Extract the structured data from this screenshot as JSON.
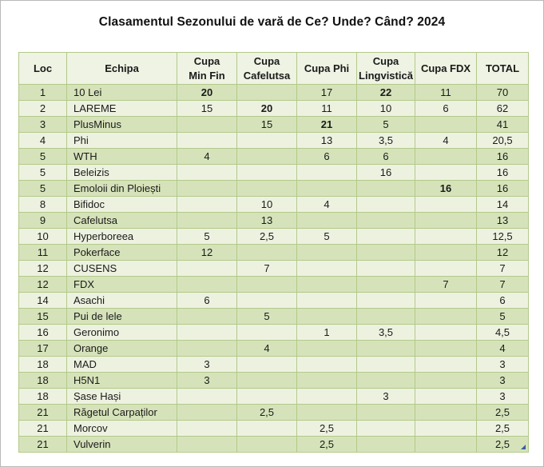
{
  "title": "Clasamentul Sezonului de vară de Ce? Unde? Când? 2024",
  "colors": {
    "band_dark": "#d6e3ba",
    "band_light": "#edf2e0",
    "header_bg": "#eef3e3",
    "table_border": "#b3c98a",
    "corner_marker_blue": "#3b5fa0",
    "text": "#1a1a1a"
  },
  "table": {
    "columns": [
      "Loc",
      "Echipa",
      "Cupa\nMin Fin",
      "Cupa\nCafelutsa",
      "Cupa Phi",
      "Cupa\nLingvistică",
      "Cupa FDX",
      "TOTAL"
    ],
    "rows": [
      {
        "cells": [
          "1",
          "10 Lei",
          "20",
          "",
          "17",
          "22",
          "11",
          "70"
        ],
        "bold": [
          2,
          5
        ]
      },
      {
        "cells": [
          "2",
          "LAREME",
          "15",
          "20",
          "11",
          "10",
          "6",
          "62"
        ],
        "bold": [
          3
        ]
      },
      {
        "cells": [
          "3",
          "PlusMinus",
          "",
          "15",
          "21",
          "5",
          "",
          "41"
        ],
        "bold": [
          4
        ]
      },
      {
        "cells": [
          "4",
          "Phi",
          "",
          "",
          "13",
          "3,5",
          "4",
          "20,5"
        ],
        "bold": []
      },
      {
        "cells": [
          "5",
          "WTH",
          "4",
          "",
          "6",
          "6",
          "",
          "16"
        ],
        "bold": []
      },
      {
        "cells": [
          "5",
          "Beleizis",
          "",
          "",
          "",
          "16",
          "",
          "16"
        ],
        "bold": []
      },
      {
        "cells": [
          "5",
          "Emoloii din Ploiești",
          "",
          "",
          "",
          "",
          "16",
          "16"
        ],
        "bold": [
          6
        ]
      },
      {
        "cells": [
          "8",
          "Bifidoc",
          "",
          "10",
          "4",
          "",
          "",
          "14"
        ],
        "bold": []
      },
      {
        "cells": [
          "9",
          "Cafelutsa",
          "",
          "13",
          "",
          "",
          "",
          "13"
        ],
        "bold": []
      },
      {
        "cells": [
          "10",
          "Hyperboreea",
          "5",
          "2,5",
          "5",
          "",
          "",
          "12,5"
        ],
        "bold": []
      },
      {
        "cells": [
          "11",
          "Pokerface",
          "12",
          "",
          "",
          "",
          "",
          "12"
        ],
        "bold": []
      },
      {
        "cells": [
          "12",
          "CUSENS",
          "",
          "7",
          "",
          "",
          "",
          "7"
        ],
        "bold": []
      },
      {
        "cells": [
          "12",
          "FDX",
          "",
          "",
          "",
          "",
          "7",
          "7"
        ],
        "bold": []
      },
      {
        "cells": [
          "14",
          "Asachi",
          "6",
          "",
          "",
          "",
          "",
          "6"
        ],
        "bold": []
      },
      {
        "cells": [
          "15",
          "Pui de lele",
          "",
          "5",
          "",
          "",
          "",
          "5"
        ],
        "bold": []
      },
      {
        "cells": [
          "16",
          "Geronimo",
          "",
          "",
          "1",
          "3,5",
          "",
          "4,5"
        ],
        "bold": []
      },
      {
        "cells": [
          "17",
          "Orange",
          "",
          "4",
          "",
          "",
          "",
          "4"
        ],
        "bold": []
      },
      {
        "cells": [
          "18",
          "MAD",
          "3",
          "",
          "",
          "",
          "",
          "3"
        ],
        "bold": []
      },
      {
        "cells": [
          "18",
          "H5N1",
          "3",
          "",
          "",
          "",
          "",
          "3"
        ],
        "bold": []
      },
      {
        "cells": [
          "18",
          "Șase Hași",
          "",
          "",
          "",
          "3",
          "",
          "3"
        ],
        "bold": []
      },
      {
        "cells": [
          "21",
          "Răgetul Carpaților",
          "",
          "2,5",
          "",
          "",
          "",
          "2,5"
        ],
        "bold": []
      },
      {
        "cells": [
          "21",
          "Morcov",
          "",
          "",
          "2,5",
          "",
          "",
          "2,5"
        ],
        "bold": []
      },
      {
        "cells": [
          "21",
          "Vulverin",
          "",
          "",
          "2,5",
          "",
          "",
          "2,5"
        ],
        "bold": []
      }
    ]
  }
}
